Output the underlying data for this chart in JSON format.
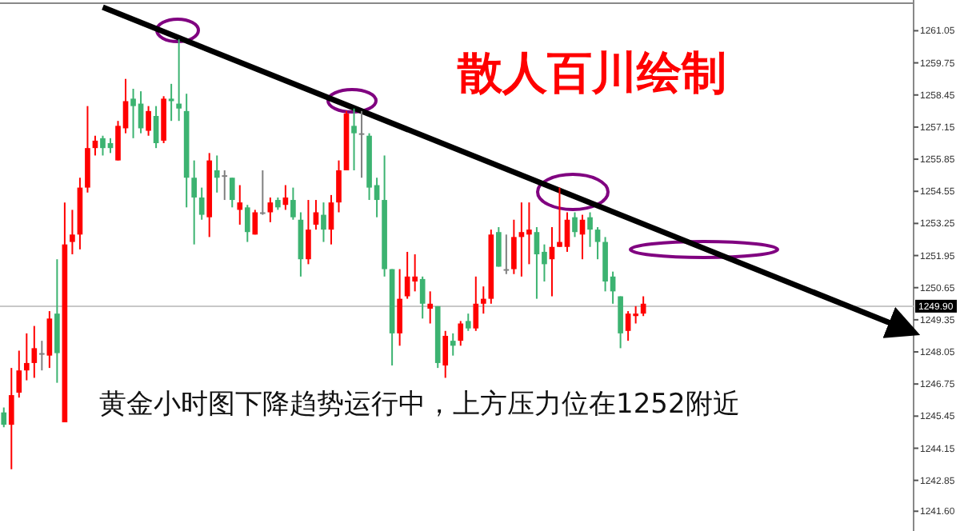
{
  "chart_data": {
    "type": "candlestick",
    "categories": [
      null,
      null,
      null,
      null,
      null,
      null,
      null,
      null,
      null,
      null,
      null,
      null,
      null,
      null,
      null,
      null,
      null,
      null,
      null,
      null,
      null,
      null,
      null,
      null,
      null,
      null,
      null,
      null,
      null,
      null,
      null,
      null,
      null,
      null,
      null,
      null,
      null,
      null,
      null,
      null,
      null,
      null,
      null,
      null,
      null,
      null,
      null,
      null,
      null,
      null,
      null,
      null,
      null,
      null,
      null,
      null,
      null,
      null,
      null,
      null,
      null,
      null,
      null,
      null,
      null,
      null,
      null,
      null,
      null,
      null,
      null,
      null,
      null,
      null,
      null,
      null,
      null,
      null,
      null,
      null,
      null,
      null,
      null,
      null,
      null,
      null,
      null,
      null,
      null,
      null,
      null,
      null,
      null,
      null,
      null,
      null,
      null,
      null,
      null,
      null,
      null,
      null,
      null,
      null,
      null,
      null,
      null,
      null,
      null,
      null,
      null,
      null,
      null,
      null,
      null,
      null,
      null,
      null,
      null,
      null
    ],
    "ohlc": [
      [
        1245.6,
        1245.8,
        1245.0,
        1245.1
      ],
      [
        1245.1,
        1247.4,
        1243.3,
        1246.3
      ],
      [
        1246.4,
        1248.1,
        1246.2,
        1247.3
      ],
      [
        1247.3,
        1248.8,
        1246.9,
        1247.6
      ],
      [
        1247.6,
        1249.1,
        1247.0,
        1248.2
      ],
      [
        1248.0,
        1248.5,
        1247.3,
        1248.0
      ],
      [
        1247.9,
        1249.7,
        1247.4,
        1249.4
      ],
      [
        1249.6,
        1251.8,
        1246.8,
        1248.0
      ],
      [
        1245.2,
        1254.1,
        1245.2,
        1252.4
      ],
      [
        1252.5,
        1253.8,
        1252.0,
        1252.8
      ],
      [
        1252.8,
        1255.1,
        1252.2,
        1254.7
      ],
      [
        1254.7,
        1258.0,
        1254.5,
        1256.3
      ],
      [
        1256.3,
        1256.8,
        1256.0,
        1256.6
      ],
      [
        1256.7,
        1256.8,
        1256.0,
        1256.3
      ],
      [
        1256.5,
        1256.7,
        1256.1,
        1256.3
      ],
      [
        1255.8,
        1257.4,
        1255.8,
        1257.2
      ],
      [
        1257.1,
        1259.1,
        1256.9,
        1258.2
      ],
      [
        1258.3,
        1258.7,
        1256.7,
        1258.0
      ],
      [
        1258.1,
        1258.6,
        1256.9,
        1257.1
      ],
      [
        1257.0,
        1258.0,
        1256.8,
        1257.8
      ],
      [
        1257.6,
        1258.0,
        1256.3,
        1256.5
      ],
      [
        1256.6,
        1258.4,
        1256.5,
        1258.3
      ],
      [
        1258.3,
        1258.9,
        1257.4,
        1258.2
      ],
      [
        1258.1,
        1260.7,
        1257.4,
        1257.9
      ],
      [
        1257.8,
        1258.5,
        1253.9,
        1255.1
      ],
      [
        1255.1,
        1255.8,
        1252.4,
        1254.3
      ],
      [
        1254.3,
        1254.7,
        1253.4,
        1253.6
      ],
      [
        1253.5,
        1256.1,
        1252.7,
        1255.8
      ],
      [
        1255.4,
        1256.0,
        1254.5,
        1255.1
      ],
      [
        1255.2,
        1255.4,
        1254.2,
        1255.2
      ],
      [
        1255.1,
        1255.1,
        1253.9,
        1254.2
      ],
      [
        1253.8,
        1254.8,
        1253.2,
        1254.1
      ],
      [
        1253.9,
        1254.0,
        1252.5,
        1252.9
      ],
      [
        1252.8,
        1253.8,
        1252.8,
        1253.7
      ],
      [
        1253.7,
        1255.4,
        1253.6,
        1253.7
      ],
      [
        1253.7,
        1254.3,
        1253.3,
        1254.1
      ],
      [
        1254.2,
        1254.3,
        1253.8,
        1253.9
      ],
      [
        1254.0,
        1254.8,
        1253.8,
        1254.3
      ],
      [
        1254.2,
        1254.7,
        1253.4,
        1253.5
      ],
      [
        1253.4,
        1253.7,
        1251.1,
        1251.8
      ],
      [
        1251.8,
        1254.2,
        1251.6,
        1253.0
      ],
      [
        1253.2,
        1254.2,
        1253.0,
        1253.7
      ],
      [
        1253.6,
        1254.1,
        1252.5,
        1253.0
      ],
      [
        1253.0,
        1254.4,
        1252.4,
        1254.1
      ],
      [
        1254.1,
        1255.8,
        1253.7,
        1255.4
      ],
      [
        1255.4,
        1257.8,
        1255.4,
        1257.7
      ],
      [
        1257.2,
        1257.9,
        1255.4,
        1256.9
      ],
      [
        1256.9,
        1257.8,
        1255.1,
        1256.9
      ],
      [
        1256.8,
        1256.9,
        1254.2,
        1254.7
      ],
      [
        1254.8,
        1255.1,
        1253.5,
        1254.2
      ],
      [
        1254.2,
        1256.0,
        1251.1,
        1251.4
      ],
      [
        1251.4,
        1251.4,
        1247.5,
        1248.8
      ],
      [
        1248.8,
        1251.4,
        1248.3,
        1250.2
      ],
      [
        1250.3,
        1252.1,
        1250.2,
        1251.1
      ],
      [
        1250.9,
        1252.0,
        1250.5,
        1251.1
      ],
      [
        1251.0,
        1251.1,
        1249.4,
        1250.0
      ],
      [
        1249.8,
        1250.5,
        1249.2,
        1250.0
      ],
      [
        1249.9,
        1249.9,
        1247.4,
        1247.6
      ],
      [
        1247.5,
        1248.9,
        1247.0,
        1248.7
      ],
      [
        1248.5,
        1248.8,
        1247.9,
        1248.3
      ],
      [
        1248.5,
        1249.3,
        1248.3,
        1249.2
      ],
      [
        1249.3,
        1249.6,
        1248.9,
        1249.0
      ],
      [
        1249.0,
        1251.1,
        1248.9,
        1250.0
      ],
      [
        1250.0,
        1250.7,
        1249.6,
        1250.2
      ],
      [
        1250.2,
        1253.0,
        1250.0,
        1252.8
      ],
      [
        1252.9,
        1253.1,
        1251.5,
        1251.5
      ],
      [
        1251.4,
        1252.8,
        1251.2,
        1251.4
      ],
      [
        1251.4,
        1253.4,
        1251.2,
        1252.7
      ],
      [
        1252.7,
        1254.1,
        1251.1,
        1252.9
      ],
      [
        1252.8,
        1254.1,
        1251.6,
        1253.0
      ],
      [
        1252.9,
        1253.1,
        1250.2,
        1252.0
      ],
      [
        1252.1,
        1252.4,
        1250.9,
        1251.6
      ],
      [
        1251.8,
        1253.1,
        1250.3,
        1252.3
      ],
      [
        1252.3,
        1254.7,
        1252.3,
        1252.5
      ],
      [
        1252.3,
        1253.7,
        1252.1,
        1253.4
      ],
      [
        1253.5,
        1253.7,
        1252.7,
        1252.9
      ],
      [
        1252.8,
        1253.6,
        1251.8,
        1253.4
      ],
      [
        1253.5,
        1253.7,
        1252.3,
        1253.0
      ],
      [
        1253.0,
        1253.1,
        1251.8,
        1252.5
      ],
      [
        1252.5,
        1252.7,
        1250.5,
        1250.9
      ],
      [
        1251.1,
        1251.3,
        1250.0,
        1250.5
      ],
      [
        1250.3,
        1250.3,
        1248.2,
        1248.8
      ],
      [
        1248.9,
        1249.7,
        1248.5,
        1249.6
      ],
      [
        1249.5,
        1249.9,
        1249.2,
        1249.6
      ],
      [
        1249.6,
        1250.3,
        1249.5,
        1250.0
      ],
      null,
      null,
      null,
      null,
      null,
      null,
      null,
      null,
      null,
      null,
      null,
      null,
      null,
      null,
      null,
      null,
      null,
      null,
      null,
      null,
      null,
      null,
      null,
      null,
      null,
      null,
      null,
      null,
      null,
      null,
      null,
      null,
      null,
      null,
      null
    ],
    "colors": [
      "#3cb371",
      "#ff0000",
      "#ff0000",
      "#ff0000",
      "#ff0000",
      "#808080",
      "#ff0000",
      "#3cb371",
      "#ff0000",
      "#ff0000",
      "#ff0000",
      "#ff0000",
      "#ff0000",
      "#3cb371",
      "#3cb371",
      "#ff0000",
      "#ff0000",
      "#3cb371",
      "#3cb371",
      "#ff0000",
      "#3cb371",
      "#ff0000",
      "#3cb371",
      "#3cb371",
      "#3cb371",
      "#3cb371",
      "#3cb371",
      "#ff0000",
      "#3cb371",
      "#808080",
      "#3cb371",
      "#ff0000",
      "#3cb371",
      "#ff0000",
      "#808080",
      "#ff0000",
      "#3cb371",
      "#ff0000",
      "#3cb371",
      "#3cb371",
      "#ff0000",
      "#ff0000",
      "#3cb371",
      "#ff0000",
      "#ff0000",
      "#ff0000",
      "#3cb371",
      "#808080",
      "#3cb371",
      "#3cb371",
      "#3cb371",
      "#3cb371",
      "#ff0000",
      "#ff0000",
      "#ff0000",
      "#3cb371",
      "#ff0000",
      "#3cb371",
      "#ff0000",
      "#3cb371",
      "#ff0000",
      "#3cb371",
      "#ff0000",
      "#ff0000",
      "#ff0000",
      "#3cb371",
      "#808080",
      "#ff0000",
      "#ff0000",
      "#ff0000",
      "#3cb371",
      "#3cb371",
      "#ff0000",
      "#ff0000",
      "#ff0000",
      "#3cb371",
      "#ff0000",
      "#3cb371",
      "#3cb371",
      "#3cb371",
      "#3cb371",
      "#3cb371",
      "#ff0000",
      "#ff0000",
      "#ff0000",
      null,
      null,
      null,
      null,
      null,
      null,
      null,
      null,
      null,
      null,
      null,
      null,
      null,
      null,
      null,
      null,
      null,
      null,
      null,
      null,
      null,
      null,
      null,
      null,
      null,
      null,
      null,
      null,
      null,
      null,
      null,
      null,
      null,
      null,
      null
    ],
    "series": [
      {
        "type": "line",
        "color": "#000000",
        "values": [
          null,
          null,
          null,
          null,
          null,
          null,
          null,
          null,
          null,
          null,
          null,
          null,
          null,
          1262.0,
          null,
          null,
          null,
          null,
          null,
          null,
          null,
          null,
          null,
          null,
          null,
          null,
          null,
          null,
          null,
          null,
          null,
          null,
          null,
          null,
          null,
          null,
          null,
          null,
          null,
          null,
          null,
          null,
          null,
          null,
          null,
          null,
          null,
          null,
          null,
          null,
          null,
          null,
          null,
          null,
          null,
          null,
          null,
          null,
          null,
          null,
          null,
          null,
          null,
          null,
          null,
          null,
          null,
          null,
          null,
          null,
          null,
          null,
          null,
          null,
          null,
          null,
          null,
          null,
          null,
          null,
          null,
          null,
          null,
          null,
          null,
          null,
          null,
          null,
          null,
          null,
          null,
          null,
          null,
          null,
          null,
          null,
          null,
          null,
          null,
          null,
          null,
          null,
          null,
          null,
          null,
          null,
          null,
          null,
          null,
          null,
          null,
          null,
          null,
          null,
          null,
          null,
          null,
          null,
          null,
          1248.9
        ]
      }
    ],
    "ylim": [
      1240.8,
      1262.1
    ],
    "yticks": [
      1261.05,
      1259.75,
      1258.45,
      1257.15,
      1255.85,
      1254.55,
      1253.25,
      1251.95,
      1250.65,
      1249.35,
      1248.05,
      1246.75,
      1245.45,
      1244.15,
      1242.85,
      {
        "value": 1241.6,
        "label": "1241.60"
      }
    ],
    "ref_lines": [
      {
        "axis": "y",
        "value": 1249.9,
        "label": "1249.90",
        "color": "#c8c8c8"
      }
    ],
    "annotations": [
      "散人百川绘制",
      "黄金小时图下降趋势运行中，上方压力位在1252附近"
    ],
    "grid": false
  }
}
